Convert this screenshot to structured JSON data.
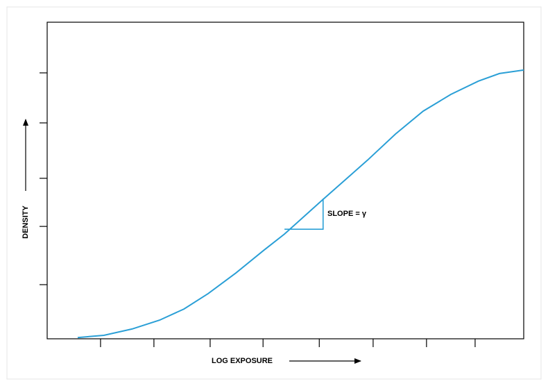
{
  "chart_data": {
    "type": "line",
    "x_label": "LOG EXPOSURE",
    "y_label": "DENSITY",
    "annotation": "SLOPE = γ",
    "xlim": [
      0,
      100
    ],
    "ylim": [
      0,
      100
    ],
    "xticks": [
      11.2,
      22.4,
      34.2,
      45.3,
      57.1,
      68.4,
      79.6,
      89.8
    ],
    "yticks": [
      17.1,
      35.5,
      50.7,
      68.2,
      84.0
    ],
    "color": "#2a9fd6",
    "x": [
      6.4,
      11.9,
      17.8,
      23.6,
      28.7,
      33.8,
      39.6,
      45.4,
      49.8,
      57.8,
      67.2,
      73.1,
      78.9,
      84.7,
      90.5,
      94.9,
      100
    ],
    "values": [
      0.4,
      1.1,
      3.1,
      5.9,
      9.4,
      14.3,
      20.8,
      27.9,
      33.1,
      43.9,
      56.4,
      64.7,
      71.9,
      77.2,
      81.4,
      83.8,
      84.9
    ],
    "slope_triangle": {
      "x": [
        49.8,
        57.9
      ],
      "y": [
        34.6,
        44.3
      ]
    }
  }
}
